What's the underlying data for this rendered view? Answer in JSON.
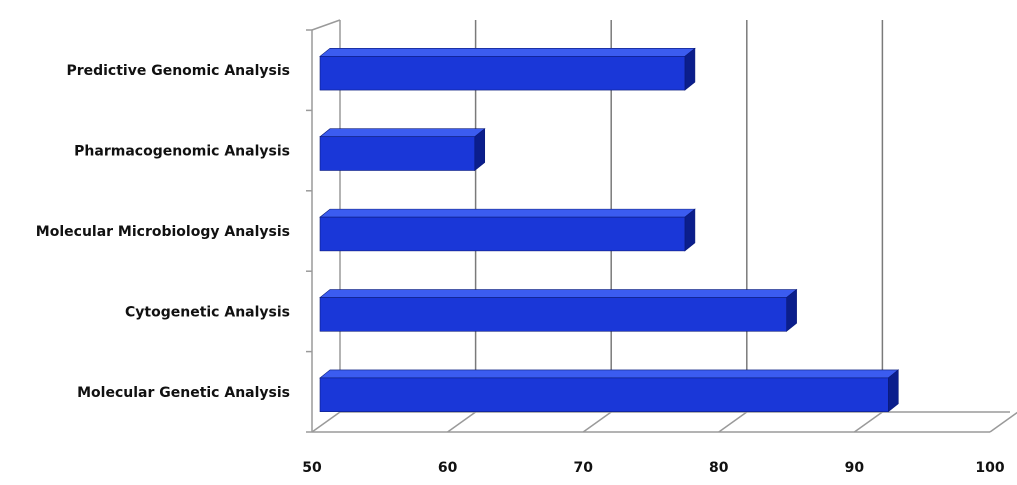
{
  "chart_data": {
    "type": "bar",
    "orientation": "horizontal",
    "three_d": true,
    "title": "",
    "xlabel": "",
    "ylabel": "",
    "categories": [
      "Molecular Genetic Analysis",
      "Cytogenetic Analysis",
      "Molecular Microbiology Analysis",
      "Pharmacogenomic Analysis",
      "Predictive Genomic Analysis"
    ],
    "values": [
      92.5,
      85,
      77.5,
      62,
      77.5
    ],
    "xlim": [
      50,
      100
    ],
    "x_ticks": [
      "50",
      "60",
      "70",
      "80",
      "90",
      "100"
    ],
    "grid": true,
    "legend": "none",
    "colors": {
      "bar_front": "#1a37d8",
      "bar_top": "#3b5cf0",
      "bar_side": "#0b1e8c",
      "bar_edge": "#0a1a7a",
      "gridline": "#7a7a7a",
      "axis": "#9a9a9a"
    }
  }
}
